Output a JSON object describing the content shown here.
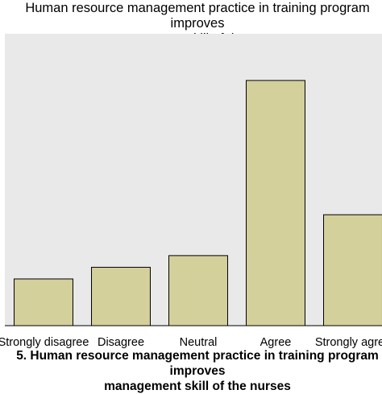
{
  "chart_data": {
    "type": "bar",
    "title": "Human resource management practice in training program improves\nmanagement skill of the nurses",
    "xlabel": "5. Human resource management practice in training program improves\nmanagement skill of the nurses",
    "ylabel": "",
    "categories": [
      "Strongly disagree",
      "Disagree",
      "Neutral",
      "Agree",
      "Strongly agree"
    ],
    "values": [
      8,
      10,
      12,
      42,
      19
    ],
    "ylim": [
      0,
      50
    ],
    "grid": false,
    "colors": {
      "plot_background": "#e9e9e9",
      "bar_fill": "#d4d09c",
      "bar_stroke": "#000000"
    }
  }
}
